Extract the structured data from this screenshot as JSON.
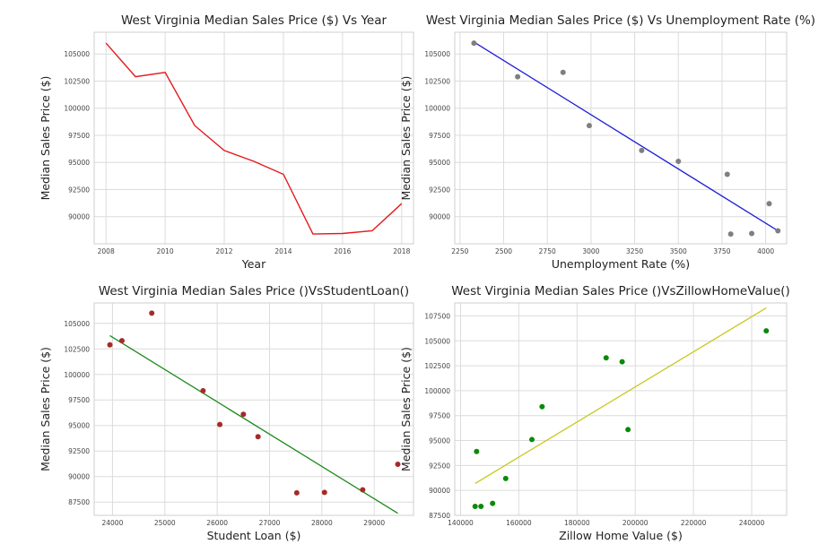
{
  "chart_data": [
    {
      "type": "line",
      "title": "West Virginia Median Sales Price ($) Vs Year",
      "xlabel": "Year",
      "ylabel": "Median Sales Price ($)",
      "xlim": [
        2007.6,
        2018.4
      ],
      "ylim": [
        87500,
        107000
      ],
      "xticks": [
        "2008",
        "2010",
        "2012",
        "2014",
        "2016",
        "2018"
      ],
      "yticks": [
        "90000",
        "92500",
        "95000",
        "97500",
        "100000",
        "102500",
        "105000"
      ],
      "grid": true,
      "color": "#e41a1c",
      "series": [
        {
          "x": [
            2008,
            2009,
            2010,
            2011,
            2012,
            2013,
            2014,
            2015,
            2016,
            2017,
            2018
          ],
          "y": [
            106000,
            102900,
            103300,
            98400,
            96100,
            95100,
            93900,
            88400,
            88450,
            88700,
            91200
          ]
        }
      ]
    },
    {
      "type": "scatter",
      "title": "West Virginia Median Sales Price ($) Vs Unemployment Rate (%)",
      "xlabel": "Unemployment Rate (%)",
      "ylabel": "Median Sales Price ($)",
      "xlim": [
        2220,
        4120
      ],
      "ylim": [
        87500,
        107000
      ],
      "xticks": [
        "2250",
        "2500",
        "2750",
        "3000",
        "3250",
        "3500",
        "3750",
        "4000"
      ],
      "yticks": [
        "90000",
        "92500",
        "95000",
        "97500",
        "100000",
        "102500",
        "105000"
      ],
      "grid": true,
      "point_color": "#7f7f7f",
      "fit_color": "#1f1fd6",
      "points": {
        "x": [
          2330,
          2580,
          2840,
          2990,
          3290,
          3500,
          3780,
          3800,
          3920,
          4020,
          4070
        ],
        "y": [
          106000,
          102900,
          103300,
          98400,
          96100,
          95100,
          93900,
          88400,
          88450,
          91200,
          88700
        ]
      },
      "fit": {
        "x": [
          2330,
          4070
        ],
        "y": [
          106100,
          88700
        ]
      }
    },
    {
      "type": "scatter",
      "title": "West Virginia Median Sales Price ()VsStudentLoan()",
      "xlabel": "Student Loan ($)",
      "ylabel": "Median Sales Price ($)",
      "xlim": [
        23650,
        29750
      ],
      "ylim": [
        86200,
        107000
      ],
      "xticks": [
        "24000",
        "25000",
        "26000",
        "27000",
        "28000",
        "29000"
      ],
      "yticks": [
        "87500",
        "90000",
        "92500",
        "95000",
        "97500",
        "100000",
        "102500",
        "105000"
      ],
      "grid": true,
      "point_color": "#a52a2a",
      "fit_color": "#1a8a1a",
      "points": {
        "x": [
          23950,
          24180,
          24750,
          25730,
          26050,
          26500,
          26780,
          27520,
          28050,
          28780,
          29450
        ],
        "y": [
          102900,
          103300,
          106000,
          98400,
          95100,
          96100,
          93900,
          88400,
          88450,
          88700,
          91200
        ]
      },
      "fit": {
        "x": [
          23950,
          29450
        ],
        "y": [
          103800,
          86400
        ]
      }
    },
    {
      "type": "scatter",
      "title": "West Virginia Median Sales Price ()VsZillowHomeValue()",
      "xlabel": "Zillow Home Value ($)",
      "ylabel": "Median Sales Price ($)",
      "xlim": [
        138000,
        252000
      ],
      "ylim": [
        87500,
        108800
      ],
      "xticks": [
        "140000",
        "160000",
        "180000",
        "200000",
        "220000",
        "240000"
      ],
      "yticks": [
        "87500",
        "90000",
        "92500",
        "95000",
        "97500",
        "100000",
        "102500",
        "105000",
        "107500"
      ],
      "grid": true,
      "point_color": "#0a8a0a",
      "fit_color": "#c8c81e",
      "points": {
        "x": [
          145000,
          145500,
          147000,
          151000,
          155500,
          164500,
          168000,
          190000,
          195500,
          197500,
          245000
        ],
        "y": [
          88400,
          93900,
          88400,
          88700,
          91200,
          95100,
          98400,
          103300,
          102900,
          96100,
          106000
        ]
      },
      "fit": {
        "x": [
          145000,
          245000
        ],
        "y": [
          90700,
          108300
        ]
      }
    }
  ]
}
